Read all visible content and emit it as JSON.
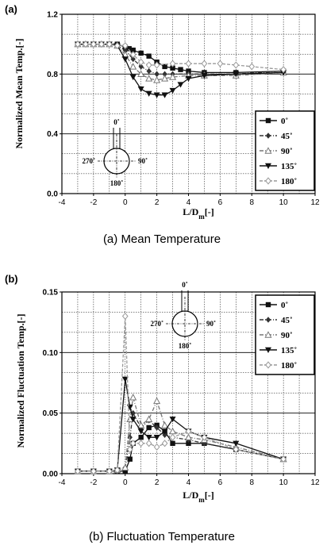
{
  "figure": {
    "series_names": [
      "0˚",
      "45˚",
      "90˚",
      "135˚",
      "180˚"
    ],
    "series_colors": [
      "#111111",
      "#333333",
      "#777777",
      "#111111",
      "#999999"
    ],
    "series_markers": [
      "square",
      "diamond",
      "triangle-up",
      "triangle-down",
      "diamond-open"
    ],
    "series_dashes": [
      "solid",
      "dashdot",
      "dashdot",
      "solid",
      "dashed"
    ],
    "diagram_labels": {
      "top": "0˚",
      "left": "270˚",
      "right": "90˚",
      "bottom": "180˚"
    }
  },
  "chart_data": [
    {
      "type": "line",
      "panel_label": "(a)",
      "caption": "(a)  Mean Temperature",
      "ylabel": "Normalized Mean Temp.[-]",
      "xlabel": "L/D_m[-]",
      "xlim": [
        -4,
        12
      ],
      "ylim": [
        0.0,
        1.2
      ],
      "xticks": [
        "-4",
        "-2",
        "0",
        "2",
        "4",
        "6",
        "8",
        "10",
        "12"
      ],
      "xtick_values": [
        -4,
        -2,
        0,
        2,
        4,
        6,
        8,
        10,
        12
      ],
      "yticks": [
        "0.0",
        "0.4",
        "0.8",
        "1.2"
      ],
      "ytick_values": [
        0.0,
        0.4,
        0.8,
        1.2
      ],
      "grid": true,
      "legend_position": "lower-right",
      "series": [
        {
          "name": "0˚",
          "x": [
            -3,
            -2.5,
            -2,
            -1.5,
            -1,
            -0.5,
            0,
            0.25,
            0.5,
            1,
            1.5,
            2,
            2.5,
            3,
            3.5,
            4,
            5,
            7,
            10
          ],
          "y": [
            1.0,
            1.0,
            1.0,
            1.0,
            1.0,
            1.0,
            0.98,
            0.97,
            0.96,
            0.94,
            0.92,
            0.88,
            0.85,
            0.84,
            0.83,
            0.82,
            0.81,
            0.81,
            0.82
          ]
        },
        {
          "name": "45˚",
          "x": [
            -3,
            -2.5,
            -2,
            -1.5,
            -1,
            -0.5,
            0,
            0.5,
            1,
            1.5,
            2,
            2.5,
            3,
            4,
            5,
            7,
            10
          ],
          "y": [
            1.0,
            1.0,
            1.0,
            1.0,
            1.0,
            0.99,
            0.96,
            0.9,
            0.85,
            0.82,
            0.8,
            0.8,
            0.8,
            0.8,
            0.8,
            0.8,
            0.82
          ]
        },
        {
          "name": "90˚",
          "x": [
            -3,
            -2.5,
            -2,
            -1.5,
            -1,
            -0.5,
            0,
            0.5,
            1,
            1.5,
            2,
            2.5,
            3,
            4,
            5,
            7,
            10
          ],
          "y": [
            1.0,
            1.0,
            1.0,
            1.0,
            1.0,
            0.99,
            0.93,
            0.85,
            0.8,
            0.77,
            0.76,
            0.77,
            0.78,
            0.79,
            0.79,
            0.79,
            0.81
          ]
        },
        {
          "name": "135˚",
          "x": [
            -3,
            -2.5,
            -2,
            -1.5,
            -1,
            -0.5,
            0,
            0.5,
            1,
            1.5,
            2,
            2.5,
            3,
            3.5,
            4,
            5,
            7,
            10
          ],
          "y": [
            1.0,
            1.0,
            1.0,
            1.0,
            1.0,
            0.99,
            0.9,
            0.78,
            0.7,
            0.67,
            0.66,
            0.66,
            0.69,
            0.73,
            0.77,
            0.79,
            0.8,
            0.81
          ]
        },
        {
          "name": "180˚",
          "x": [
            -3,
            -2.5,
            -2,
            -1.5,
            -1,
            -0.5,
            0,
            0.5,
            1,
            1.5,
            2,
            3,
            4,
            5,
            6,
            7,
            8,
            10
          ],
          "y": [
            1.0,
            1.0,
            1.0,
            1.0,
            1.0,
            0.99,
            0.99,
            0.93,
            0.88,
            0.86,
            0.86,
            0.87,
            0.87,
            0.87,
            0.87,
            0.86,
            0.85,
            0.83
          ]
        }
      ]
    },
    {
      "type": "line",
      "panel_label": "(b)",
      "caption": "(b)  Fluctuation Temperature",
      "ylabel": "Normalized Fluctuation Temp.[-]",
      "xlabel": "L/D_m[-]",
      "xlim": [
        -4,
        12
      ],
      "ylim": [
        0.0,
        0.15
      ],
      "xticks": [
        "-4",
        "-2",
        "0",
        "2",
        "4",
        "6",
        "8",
        "10",
        "12"
      ],
      "xtick_values": [
        -4,
        -2,
        0,
        2,
        4,
        6,
        8,
        10,
        12
      ],
      "yticks": [
        "0.00",
        "0.05",
        "0.10",
        "0.15"
      ],
      "ytick_values": [
        0.0,
        0.05,
        0.1,
        0.15
      ],
      "grid": true,
      "legend_position": "upper-right",
      "series": [
        {
          "name": "0˚",
          "x": [
            -3,
            -2,
            -1,
            -0.5,
            0,
            0.3,
            0.5,
            1,
            1.5,
            2,
            2.5,
            3,
            4,
            5,
            7,
            10
          ],
          "y": [
            0.002,
            0.002,
            0.002,
            0.002,
            0.002,
            0.012,
            0.025,
            0.03,
            0.038,
            0.04,
            0.035,
            0.025,
            0.025,
            0.025,
            0.02,
            0.012
          ]
        },
        {
          "name": "45˚",
          "x": [
            -3,
            -2,
            -1,
            -0.5,
            0,
            0.3,
            0.5,
            1,
            1.5,
            2,
            2.5,
            3,
            4,
            5,
            7,
            10
          ],
          "y": [
            0.002,
            0.002,
            0.002,
            0.003,
            0.005,
            0.03,
            0.05,
            0.038,
            0.044,
            0.038,
            0.032,
            0.03,
            0.028,
            0.025,
            0.02,
            0.012
          ]
        },
        {
          "name": "90˚",
          "x": [
            -3,
            -2,
            -1,
            -0.5,
            0,
            0.3,
            0.5,
            1,
            1.5,
            2,
            2.5,
            3,
            4,
            5,
            7,
            10
          ],
          "y": [
            0.002,
            0.002,
            0.002,
            0.003,
            0.005,
            0.045,
            0.063,
            0.04,
            0.045,
            0.06,
            0.04,
            0.035,
            0.03,
            0.028,
            0.022,
            0.012
          ]
        },
        {
          "name": "135˚",
          "x": [
            -3,
            -2,
            -1,
            -0.5,
            0,
            0.3,
            0.5,
            1,
            1.5,
            2,
            2.5,
            3,
            4,
            5,
            7,
            10
          ],
          "y": [
            0.002,
            0.002,
            0.002,
            0.003,
            0.078,
            0.055,
            0.045,
            0.035,
            0.03,
            0.03,
            0.035,
            0.045,
            0.035,
            0.03,
            0.025,
            0.012
          ]
        },
        {
          "name": "180˚",
          "x": [
            -3,
            -2,
            -1,
            -0.5,
            0,
            0.3,
            0.5,
            1,
            1.5,
            2,
            2.5,
            3,
            4,
            5,
            7,
            10
          ],
          "y": [
            0.002,
            0.002,
            0.002,
            0.003,
            0.13,
            0.02,
            0.025,
            0.025,
            0.025,
            0.022,
            0.025,
            0.03,
            0.035,
            0.03,
            0.02,
            0.012
          ]
        }
      ]
    }
  ]
}
